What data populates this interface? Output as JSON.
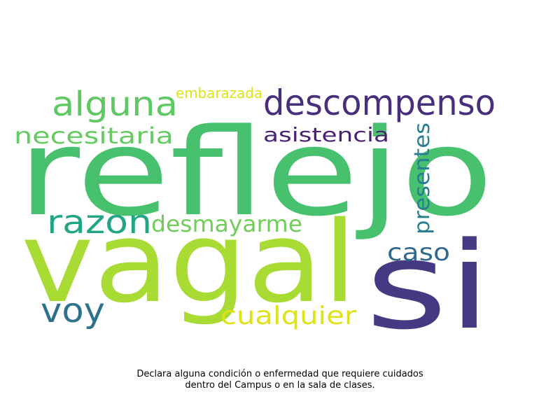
{
  "words": [
    {
      "text": "reflejo",
      "color": "#47c16e"
    },
    {
      "text": "vagal",
      "color": "#a8db34"
    },
    {
      "text": "si",
      "color": "#443983"
    },
    {
      "text": "descompenso",
      "color": "#472f7d"
    },
    {
      "text": "alguna",
      "color": "#5ec962"
    },
    {
      "text": "razon",
      "color": "#21a685"
    },
    {
      "text": "desmayarme",
      "color": "#6ece58"
    },
    {
      "text": "necesitaria",
      "color": "#63cb5f"
    },
    {
      "text": "asistencia",
      "color": "#482173"
    },
    {
      "text": "presentes",
      "color": "#287d8e"
    },
    {
      "text": "voy",
      "color": "#2c728e"
    },
    {
      "text": "caso",
      "color": "#31688e"
    },
    {
      "text": "cualquier",
      "color": "#dde318"
    },
    {
      "text": "embarazada",
      "color": "#dde318"
    }
  ],
  "caption": {
    "line1": "Declara alguna condición o enfermedad que requiere cuidados",
    "line2": "dentro del Campus o en la sala de clases."
  }
}
